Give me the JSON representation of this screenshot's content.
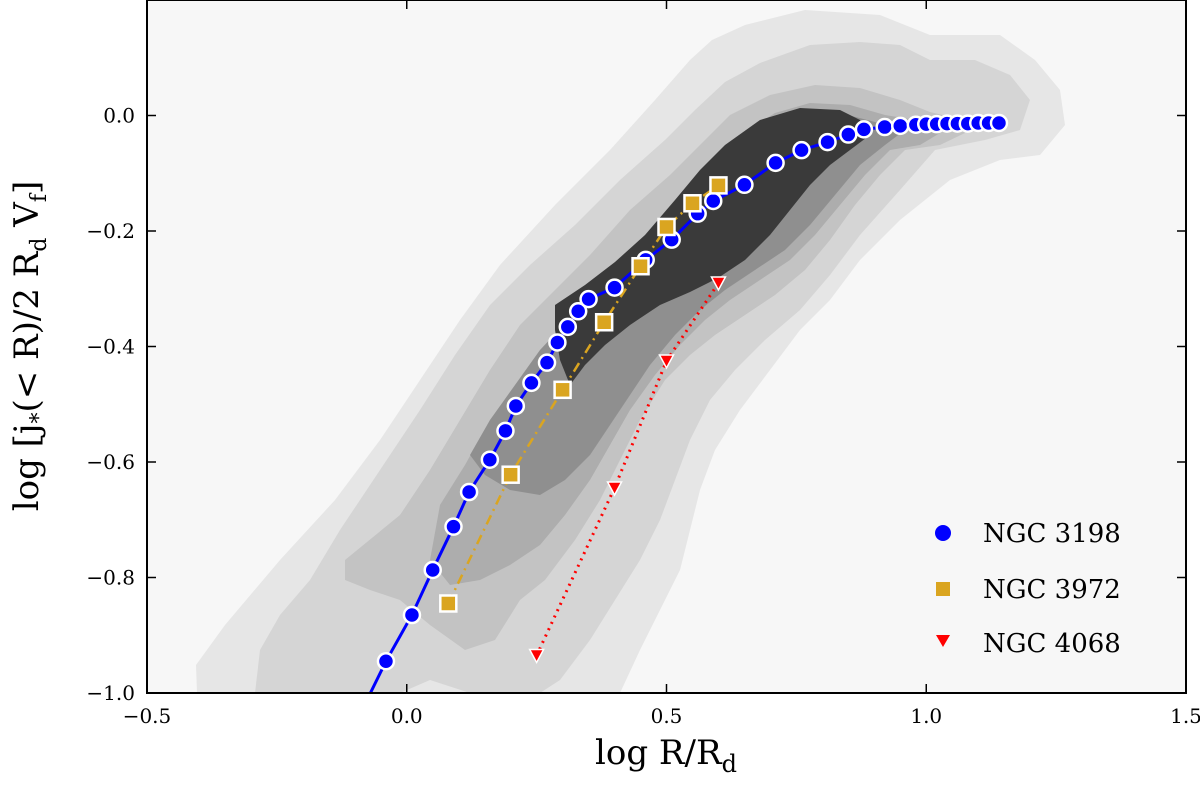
{
  "chart_data": {
    "type": "scatter",
    "title": "",
    "xlabel": "log R/R",
    "xlabel_sub": "d",
    "ylabel_parts": [
      "log [j",
      "*",
      "(< R)/2 R",
      "d",
      " V",
      "f",
      "]"
    ],
    "xlim": [
      -0.5,
      1.5
    ],
    "ylim": [
      -1.0,
      0.2
    ],
    "xticks": [
      -0.5,
      0.0,
      0.5,
      1.0,
      1.5
    ],
    "xtick_labels": [
      "−0.5",
      "0.0",
      "0.5",
      "1.0",
      "1.5"
    ],
    "yticks": [
      -1.0,
      -0.8,
      -0.6,
      -0.4,
      -0.2,
      0.0
    ],
    "ytick_labels": [
      "−1.0",
      "−0.8",
      "−0.6",
      "−0.4",
      "−0.2",
      "0.0"
    ],
    "grid": false,
    "legend_position": "bottom-right",
    "background_color": "#f7f7f7",
    "contour_colors": [
      "#e6e6e6",
      "#d5d5d5",
      "#c3c3c3",
      "#adadad",
      "#8f8f8f",
      "#3a3a3a"
    ],
    "series": [
      {
        "name": "NGC 3198",
        "marker": "circle",
        "color": "#0000ff",
        "line_style": "solid",
        "x": [
          -0.04,
          0.01,
          0.05,
          0.09,
          0.12,
          0.16,
          0.19,
          0.21,
          0.24,
          0.27,
          0.29,
          0.31,
          0.33,
          0.35,
          0.4,
          0.46,
          0.51,
          0.56,
          0.59,
          0.65,
          0.71,
          0.76,
          0.81,
          0.85,
          0.88,
          0.92,
          0.95,
          0.98,
          1.0,
          1.02,
          1.04,
          1.06,
          1.08,
          1.1,
          1.12,
          1.14
        ],
        "y": [
          -0.945,
          -0.865,
          -0.787,
          -0.712,
          -0.652,
          -0.596,
          -0.546,
          -0.503,
          -0.463,
          -0.428,
          -0.393,
          -0.366,
          -0.339,
          -0.318,
          -0.298,
          -0.25,
          -0.215,
          -0.17,
          -0.148,
          -0.12,
          -0.082,
          -0.06,
          -0.046,
          -0.033,
          -0.024,
          -0.02,
          -0.018,
          -0.016,
          -0.015,
          -0.015,
          -0.014,
          -0.014,
          -0.014,
          -0.013,
          -0.013,
          -0.013
        ],
        "line_x": [
          -0.07,
          -0.04,
          0.01,
          0.05,
          0.09,
          0.12,
          0.16,
          0.19,
          0.21,
          0.24,
          0.27,
          0.29,
          0.31,
          0.33,
          0.35,
          0.4,
          0.46,
          0.51,
          0.56,
          0.59,
          0.65,
          0.71,
          0.76,
          0.81,
          0.85,
          0.88,
          0.92,
          0.95,
          0.98,
          1.0,
          1.02,
          1.04,
          1.06,
          1.08,
          1.1,
          1.12,
          1.14
        ],
        "line_y": [
          -1.0,
          -0.945,
          -0.865,
          -0.787,
          -0.712,
          -0.652,
          -0.596,
          -0.546,
          -0.503,
          -0.463,
          -0.428,
          -0.393,
          -0.366,
          -0.339,
          -0.318,
          -0.298,
          -0.25,
          -0.215,
          -0.17,
          -0.148,
          -0.12,
          -0.082,
          -0.06,
          -0.046,
          -0.033,
          -0.024,
          -0.02,
          -0.018,
          -0.016,
          -0.015,
          -0.015,
          -0.014,
          -0.014,
          -0.014,
          -0.013,
          -0.013,
          -0.013
        ]
      },
      {
        "name": "NGC 3972",
        "marker": "square",
        "color": "#daa520",
        "line_style": "dashdot",
        "x": [
          0.08,
          0.2,
          0.3,
          0.38,
          0.45,
          0.5,
          0.55,
          0.6
        ],
        "y": [
          -0.845,
          -0.622,
          -0.475,
          -0.358,
          -0.261,
          -0.193,
          -0.152,
          -0.121
        ]
      },
      {
        "name": "NGC 4068",
        "marker": "triangle-down",
        "color": "#ff0000",
        "line_style": "dotted",
        "x": [
          0.25,
          0.4,
          0.5,
          0.6
        ],
        "y": [
          -0.935,
          -0.645,
          -0.425,
          -0.29
        ]
      }
    ]
  }
}
